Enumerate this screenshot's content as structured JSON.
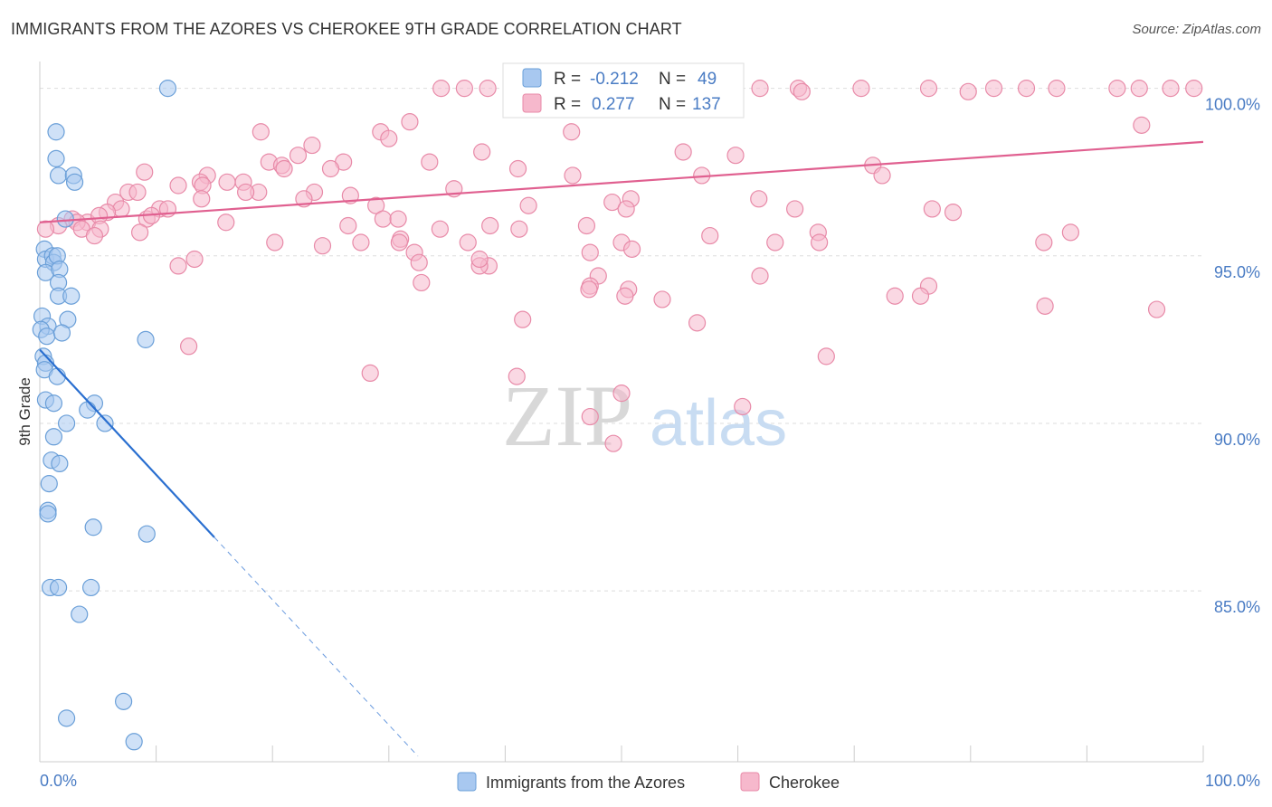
{
  "title": "IMMIGRANTS FROM THE AZORES VS CHEROKEE 9TH GRADE CORRELATION CHART",
  "source": "Source: ZipAtlas.com",
  "watermark": {
    "zip": "ZIP",
    "atlas": "atlas"
  },
  "colors": {
    "blue_fill": "#a8c8f0",
    "blue_stroke": "#6a9fd8",
    "blue_line": "#2a6fd0",
    "pink_fill": "#f6b8cc",
    "pink_stroke": "#e88aa8",
    "pink_line": "#e06090",
    "tick_text": "#4a7cc4",
    "grid": "#dddddd"
  },
  "legend_stats": [
    {
      "r_label": "R = ",
      "r_value": "-0.212",
      "n_label": "N = ",
      "n_value": "49",
      "series": "azores"
    },
    {
      "r_label": "R = ",
      "r_value": "0.277",
      "n_label": "N = ",
      "n_value": "137",
      "series": "cherokee"
    }
  ],
  "chart_data": {
    "type": "scatter",
    "title": "IMMIGRANTS FROM THE AZORES VS CHEROKEE 9TH GRADE CORRELATION CHART",
    "xlabel": "",
    "ylabel": "9th Grade",
    "xlim": [
      0,
      100
    ],
    "ylim": [
      79.9,
      100.8
    ],
    "x_tick_labels": [
      {
        "value": 0,
        "label": "0.0%"
      },
      {
        "value": 100,
        "label": "100.0%"
      }
    ],
    "y_ticks": [
      {
        "value": 100,
        "label": "100.0%"
      },
      {
        "value": 95,
        "label": "95.0%"
      },
      {
        "value": 90,
        "label": "90.0%"
      },
      {
        "value": 85,
        "label": "85.0%"
      }
    ],
    "legend": [
      "Immigrants from the Azores",
      "Cherokee"
    ],
    "series": [
      {
        "name": "Immigrants from the Azores",
        "key": "azores",
        "trend": {
          "x0": 0,
          "y0": 92.2,
          "x1": 15,
          "y1": 86.6,
          "dash_x1": 32.5
        },
        "points": [
          [
            11,
            100.0
          ],
          [
            1.4,
            98.7
          ],
          [
            1.4,
            97.9
          ],
          [
            1.6,
            97.4
          ],
          [
            2.9,
            97.4
          ],
          [
            3.0,
            97.2
          ],
          [
            2.2,
            96.1
          ],
          [
            0.4,
            95.2
          ],
          [
            0.5,
            94.9
          ],
          [
            1.1,
            95.0
          ],
          [
            1.2,
            94.8
          ],
          [
            1.5,
            95.0
          ],
          [
            0.5,
            94.5
          ],
          [
            1.7,
            94.6
          ],
          [
            1.6,
            94.2
          ],
          [
            1.6,
            93.8
          ],
          [
            2.7,
            93.8
          ],
          [
            0.2,
            93.2
          ],
          [
            2.4,
            93.1
          ],
          [
            0.7,
            92.9
          ],
          [
            0.1,
            92.8
          ],
          [
            0.6,
            92.6
          ],
          [
            1.9,
            92.7
          ],
          [
            9.1,
            92.5
          ],
          [
            0.3,
            92.0
          ],
          [
            0.5,
            91.8
          ],
          [
            0.4,
            91.6
          ],
          [
            1.5,
            91.4
          ],
          [
            0.5,
            90.7
          ],
          [
            1.2,
            90.6
          ],
          [
            4.7,
            90.6
          ],
          [
            4.1,
            90.4
          ],
          [
            2.3,
            90.0
          ],
          [
            5.6,
            90.0
          ],
          [
            1.2,
            89.6
          ],
          [
            1.0,
            88.9
          ],
          [
            1.7,
            88.8
          ],
          [
            0.8,
            88.2
          ],
          [
            0.7,
            87.4
          ],
          [
            0.7,
            87.3
          ],
          [
            4.6,
            86.9
          ],
          [
            9.2,
            86.7
          ],
          [
            0.9,
            85.1
          ],
          [
            1.6,
            85.1
          ],
          [
            4.4,
            85.1
          ],
          [
            3.4,
            84.3
          ],
          [
            7.2,
            81.7
          ],
          [
            2.3,
            81.2
          ],
          [
            8.1,
            80.5
          ]
        ]
      },
      {
        "name": "Cherokee",
        "key": "cherokee",
        "trend": {
          "x0": 0,
          "y0": 96.0,
          "x1": 100,
          "y1": 98.4
        },
        "points": [
          [
            34.5,
            100.0
          ],
          [
            36.5,
            100.0
          ],
          [
            38.5,
            100.0
          ],
          [
            45.2,
            100.0
          ],
          [
            46.4,
            100.0
          ],
          [
            51.7,
            100.0
          ],
          [
            59.7,
            100.0
          ],
          [
            61.9,
            100.0
          ],
          [
            65.2,
            100.0
          ],
          [
            70.6,
            100.0
          ],
          [
            76.4,
            100.0
          ],
          [
            82.0,
            100.0
          ],
          [
            84.8,
            100.0
          ],
          [
            87.4,
            100.0
          ],
          [
            92.6,
            100.0
          ],
          [
            94.5,
            100.0
          ],
          [
            97.2,
            100.0
          ],
          [
            99.2,
            100.0
          ],
          [
            56.0,
            100.0
          ],
          [
            65.5,
            99.9
          ],
          [
            79.8,
            99.9
          ],
          [
            31.8,
            99.0
          ],
          [
            94.7,
            98.9
          ],
          [
            19.0,
            98.7
          ],
          [
            29.3,
            98.7
          ],
          [
            45.7,
            98.7
          ],
          [
            30.0,
            98.5
          ],
          [
            23.4,
            98.3
          ],
          [
            38.0,
            98.1
          ],
          [
            55.3,
            98.1
          ],
          [
            59.8,
            98.0
          ],
          [
            22.2,
            98.0
          ],
          [
            19.7,
            97.8
          ],
          [
            33.5,
            97.8
          ],
          [
            26.1,
            97.8
          ],
          [
            20.8,
            97.7
          ],
          [
            21.0,
            97.6
          ],
          [
            71.6,
            97.7
          ],
          [
            41.1,
            97.6
          ],
          [
            25.0,
            97.6
          ],
          [
            9.0,
            97.5
          ],
          [
            14.4,
            97.4
          ],
          [
            45.8,
            97.4
          ],
          [
            56.9,
            97.4
          ],
          [
            72.4,
            97.4
          ],
          [
            11.9,
            97.1
          ],
          [
            13.8,
            97.2
          ],
          [
            17.5,
            97.2
          ],
          [
            16.1,
            97.2
          ],
          [
            14.0,
            97.1
          ],
          [
            18.8,
            96.9
          ],
          [
            17.7,
            96.9
          ],
          [
            7.6,
            96.9
          ],
          [
            8.4,
            96.9
          ],
          [
            23.6,
            96.9
          ],
          [
            35.6,
            97.0
          ],
          [
            26.7,
            96.8
          ],
          [
            22.7,
            96.7
          ],
          [
            6.5,
            96.6
          ],
          [
            13.9,
            96.7
          ],
          [
            10.3,
            96.4
          ],
          [
            50.8,
            96.7
          ],
          [
            49.2,
            96.6
          ],
          [
            28.9,
            96.5
          ],
          [
            42.0,
            96.5
          ],
          [
            11.0,
            96.4
          ],
          [
            7.0,
            96.4
          ],
          [
            5.8,
            96.3
          ],
          [
            61.8,
            96.7
          ],
          [
            50.4,
            96.4
          ],
          [
            64.9,
            96.4
          ],
          [
            76.7,
            96.4
          ],
          [
            78.5,
            96.3
          ],
          [
            9.2,
            96.1
          ],
          [
            4.1,
            96.0
          ],
          [
            5.1,
            96.2
          ],
          [
            2.8,
            96.1
          ],
          [
            3.2,
            96.0
          ],
          [
            1.6,
            95.9
          ],
          [
            16.0,
            96.0
          ],
          [
            29.5,
            96.1
          ],
          [
            5.2,
            95.8
          ],
          [
            3.6,
            95.8
          ],
          [
            8.6,
            95.7
          ],
          [
            9.6,
            96.2
          ],
          [
            4.7,
            95.6
          ],
          [
            0.5,
            95.8
          ],
          [
            34.4,
            95.8
          ],
          [
            26.5,
            95.9
          ],
          [
            38.7,
            95.9
          ],
          [
            47.0,
            95.9
          ],
          [
            41.2,
            95.8
          ],
          [
            66.9,
            95.7
          ],
          [
            57.6,
            95.6
          ],
          [
            31.0,
            95.5
          ],
          [
            20.2,
            95.4
          ],
          [
            27.6,
            95.4
          ],
          [
            30.9,
            95.4
          ],
          [
            50.0,
            95.4
          ],
          [
            63.2,
            95.4
          ],
          [
            67.0,
            95.4
          ],
          [
            86.3,
            95.4
          ],
          [
            88.6,
            95.7
          ],
          [
            36.8,
            95.4
          ],
          [
            24.3,
            95.3
          ],
          [
            32.2,
            95.1
          ],
          [
            32.6,
            94.8
          ],
          [
            13.3,
            94.9
          ],
          [
            11.9,
            94.7
          ],
          [
            38.6,
            94.7
          ],
          [
            37.8,
            94.7
          ],
          [
            48.0,
            94.4
          ],
          [
            61.9,
            94.4
          ],
          [
            32.8,
            94.2
          ],
          [
            47.3,
            94.1
          ],
          [
            50.6,
            94.0
          ],
          [
            47.2,
            94.0
          ],
          [
            76.4,
            94.1
          ],
          [
            53.5,
            93.7
          ],
          [
            50.3,
            93.8
          ],
          [
            73.5,
            93.8
          ],
          [
            75.7,
            93.8
          ],
          [
            86.4,
            93.5
          ],
          [
            96.0,
            93.4
          ],
          [
            41.5,
            93.1
          ],
          [
            56.5,
            93.0
          ],
          [
            67.6,
            92.0
          ],
          [
            12.8,
            92.3
          ],
          [
            28.4,
            91.5
          ],
          [
            41.0,
            91.4
          ],
          [
            50.0,
            90.9
          ],
          [
            60.4,
            90.5
          ],
          [
            47.3,
            90.2
          ],
          [
            49.3,
            89.4
          ],
          [
            30.8,
            96.1
          ],
          [
            50.9,
            95.2
          ],
          [
            47.3,
            95.1
          ],
          [
            37.8,
            94.9
          ]
        ]
      }
    ]
  }
}
